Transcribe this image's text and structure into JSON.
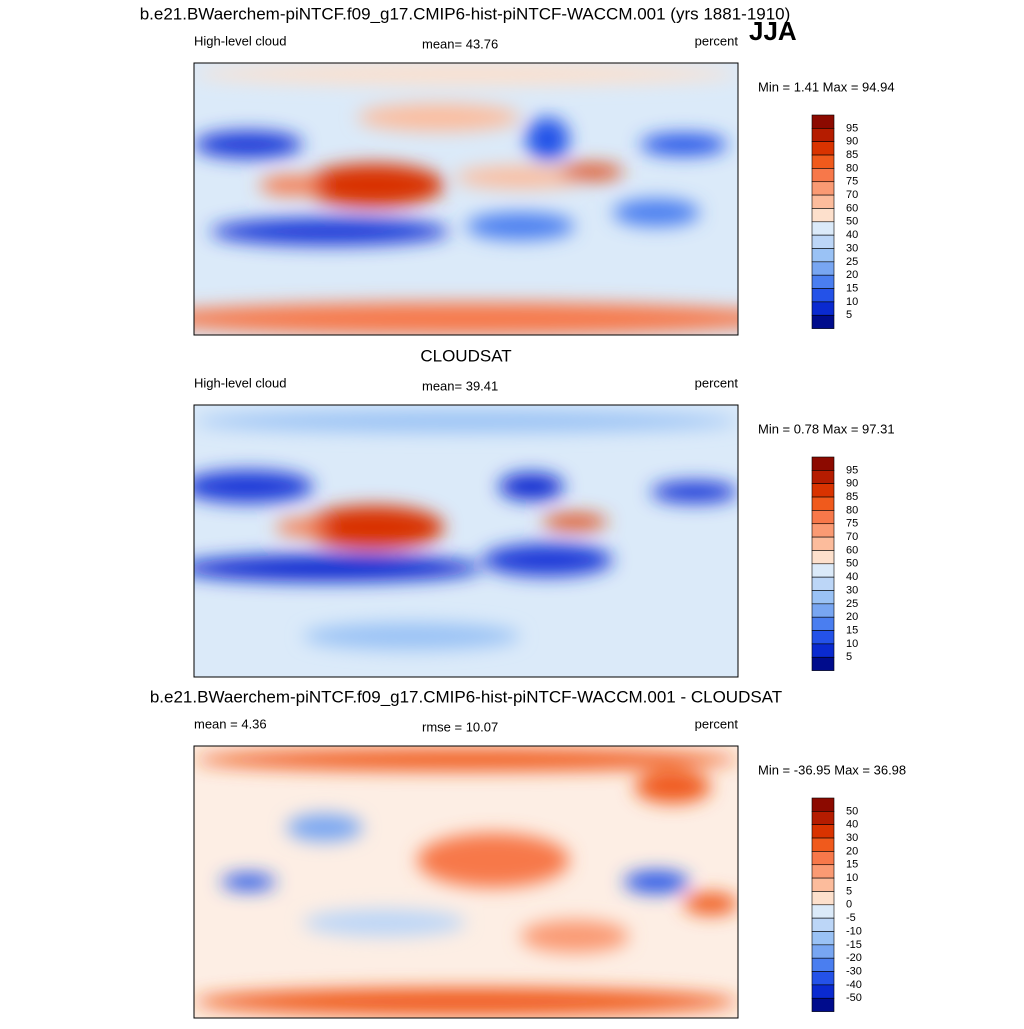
{
  "title": "b.e21.BWaerchem-piNTCF.f09_g17.CMIP6-hist-piNTCF-WACCM.001 (yrs 1881-1910)",
  "season": "JJA",
  "panels": [
    {
      "title": null,
      "left": "High-level cloud",
      "center": "mean=  43.76",
      "right": "percent",
      "minmax": "Min =   1.41 Max =  94.94",
      "colorbar": [
        95,
        90,
        85,
        80,
        75,
        70,
        60,
        50,
        40,
        30,
        25,
        20,
        15,
        10,
        5
      ]
    },
    {
      "title": "CLOUDSAT",
      "left": "High-level cloud",
      "center": "mean=  39.41",
      "right": "percent",
      "minmax": "Min =   0.78 Max =  97.31",
      "colorbar": [
        95,
        90,
        85,
        80,
        75,
        70,
        60,
        50,
        40,
        30,
        25,
        20,
        15,
        10,
        5
      ]
    },
    {
      "title": "b.e21.BWaerchem-piNTCF.f09_g17.CMIP6-hist-piNTCF-WACCM.001 - CLOUDSAT",
      "left": "mean =   4.36",
      "center": "rmse =  10.07",
      "right": "percent",
      "minmax": "Min = -36.95 Max =  36.98",
      "colorbar": [
        50,
        40,
        30,
        20,
        15,
        10,
        5,
        0,
        -5,
        -10,
        -15,
        -20,
        -30,
        -40,
        -50
      ]
    }
  ],
  "colorbar_colors": [
    "#8c0a00",
    "#b51c00",
    "#d93300",
    "#f05a1c",
    "#f7784a",
    "#fa9a73",
    "#fcbc9c",
    "#fde0cc",
    "#dbeaf9",
    "#bcd6f7",
    "#9ac2f5",
    "#78a6f2",
    "#4a7ef0",
    "#2452e8",
    "#0a2ad0",
    "#000c8c"
  ]
}
